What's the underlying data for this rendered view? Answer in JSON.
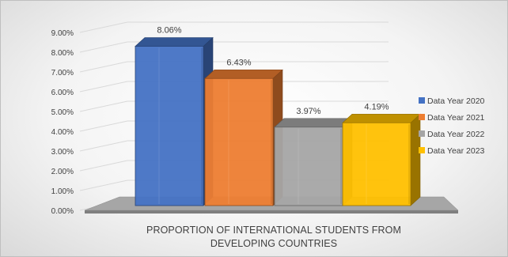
{
  "chart_data": {
    "type": "bar",
    "categories": [
      "PROPORTION OF INTERNATIONAL STUDENTS FROM",
      "DEVELOPING COUNTRIES"
    ],
    "series": [
      {
        "name": "Data Year 2020",
        "value": 8.06,
        "label": "8.06%",
        "color": "#4472c4"
      },
      {
        "name": "Data Year 2021",
        "value": 6.43,
        "label": "6.43%",
        "color": "#ed7d31"
      },
      {
        "name": "Data Year 2022",
        "value": 3.97,
        "label": "3.97%",
        "color": "#a5a5a5"
      },
      {
        "name": "Data Year 2023",
        "value": 4.19,
        "label": "4.19%",
        "color": "#ffc000"
      }
    ],
    "ylim": [
      0,
      9
    ],
    "yticks": [
      "0.00%",
      "1.00%",
      "2.00%",
      "3.00%",
      "4.00%",
      "5.00%",
      "6.00%",
      "7.00%",
      "8.00%",
      "9.00%"
    ],
    "legend_position": "right",
    "grid": true,
    "style": "3d-column"
  }
}
